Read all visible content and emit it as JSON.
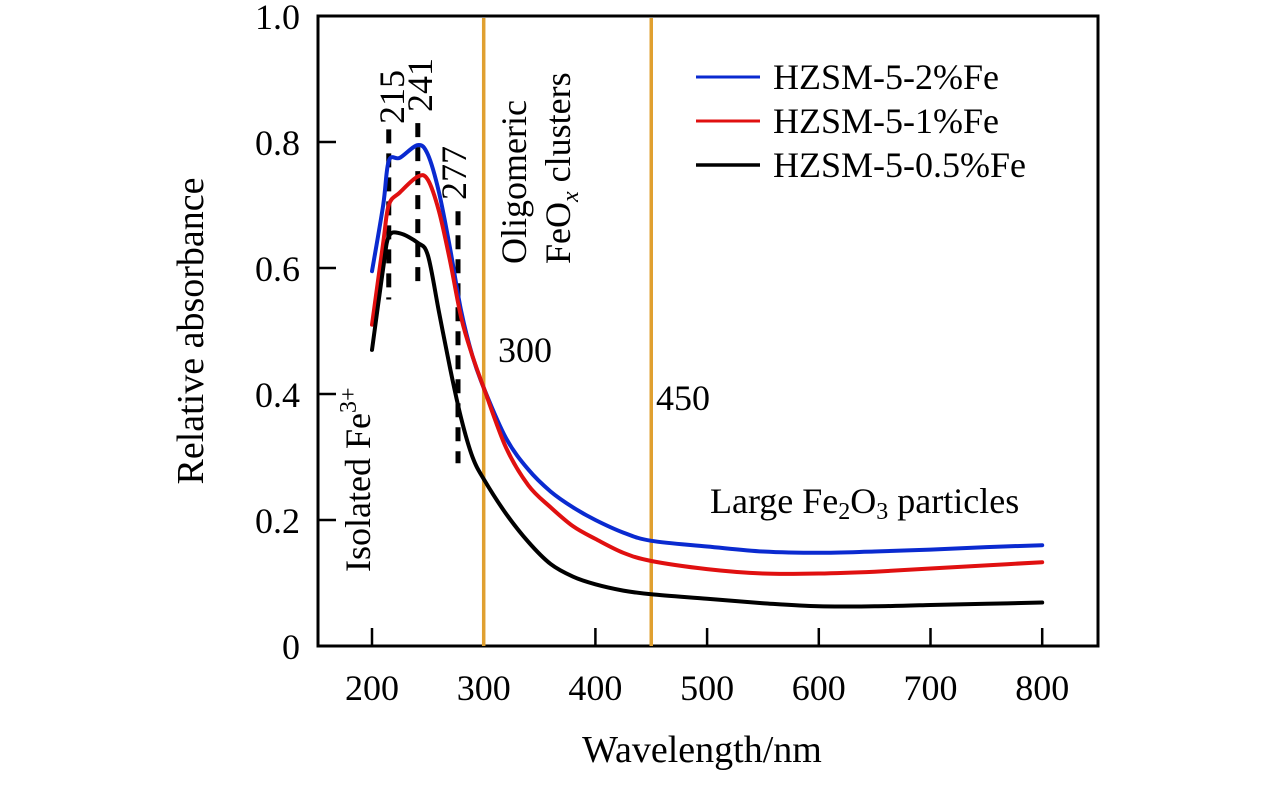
{
  "chart_data": {
    "type": "line",
    "title": "",
    "xlabel": "Wavelength/nm",
    "ylabel": "Relative absorbance",
    "xlim": [
      150,
      850
    ],
    "ylim": [
      0,
      1.0
    ],
    "xticks": [
      200,
      300,
      400,
      500,
      600,
      700,
      800
    ],
    "xtick_labels": [
      "200",
      "300",
      "400",
      "500",
      "600",
      "700",
      "800"
    ],
    "yticks": [
      0,
      0.2,
      0.4,
      0.6,
      0.8,
      1.0
    ],
    "ytick_labels": [
      "0",
      "0.2",
      "0.4",
      "0.6",
      "0.8",
      "1.0"
    ],
    "grid": false,
    "legend_position": "top-right",
    "series": [
      {
        "name": "HZSM-5-2%Fe",
        "color": "#0a2ad0",
        "x": [
          200,
          210,
          215,
          225,
          241,
          250,
          260,
          270,
          280,
          290,
          300,
          320,
          340,
          360,
          380,
          400,
          425,
          450,
          500,
          550,
          600,
          650,
          700,
          750,
          800
        ],
        "y": [
          0.595,
          0.7,
          0.77,
          0.775,
          0.795,
          0.78,
          0.72,
          0.63,
          0.53,
          0.46,
          0.41,
          0.33,
          0.28,
          0.245,
          0.22,
          0.2,
          0.18,
          0.167,
          0.158,
          0.15,
          0.148,
          0.15,
          0.153,
          0.157,
          0.16
        ]
      },
      {
        "name": "HZSM-5-1%Fe",
        "color": "#e01010",
        "x": [
          200,
          210,
          215,
          225,
          241,
          250,
          260,
          270,
          280,
          290,
          300,
          320,
          340,
          360,
          380,
          400,
          425,
          450,
          500,
          550,
          600,
          650,
          700,
          750,
          800
        ],
        "y": [
          0.51,
          0.64,
          0.7,
          0.72,
          0.745,
          0.74,
          0.69,
          0.61,
          0.52,
          0.46,
          0.41,
          0.315,
          0.255,
          0.22,
          0.19,
          0.17,
          0.148,
          0.135,
          0.122,
          0.115,
          0.115,
          0.118,
          0.123,
          0.128,
          0.133
        ]
      },
      {
        "name": "HZSM-5-0.5%Fe",
        "color": "#000000",
        "x": [
          200,
          210,
          215,
          225,
          241,
          250,
          260,
          270,
          280,
          290,
          300,
          320,
          340,
          360,
          380,
          400,
          425,
          450,
          500,
          550,
          600,
          650,
          700,
          750,
          800
        ],
        "y": [
          0.47,
          0.6,
          0.65,
          0.655,
          0.64,
          0.62,
          0.53,
          0.44,
          0.36,
          0.3,
          0.265,
          0.21,
          0.165,
          0.13,
          0.11,
          0.098,
          0.088,
          0.082,
          0.075,
          0.068,
          0.063,
          0.063,
          0.065,
          0.067,
          0.069
        ]
      }
    ],
    "vertical_lines": [
      {
        "x": 300,
        "color": "#e0a030",
        "label": "300"
      },
      {
        "x": 450,
        "color": "#e0a030",
        "label": "450"
      }
    ],
    "peak_markers": [
      {
        "x": 215,
        "label": "215",
        "y_range": [
          0.55,
          0.82
        ]
      },
      {
        "x": 241,
        "label": "241",
        "y_range": [
          0.57,
          0.83
        ]
      },
      {
        "x": 277,
        "label": "277",
        "y_range": [
          0.29,
          0.69
        ]
      }
    ],
    "annotations": {
      "isolated": {
        "text": "Isolated Fe",
        "sup": "3+"
      },
      "oligomeric_line1": "Oligomeric",
      "oligomeric_line2_pre": "FeO",
      "oligomeric_line2_sub": "x",
      "oligomeric_line2_post": " clusters",
      "large_pre": "Large Fe",
      "large_sub1": "2",
      "large_mid": "O",
      "large_sub2": "3",
      "large_post": " particles"
    }
  }
}
